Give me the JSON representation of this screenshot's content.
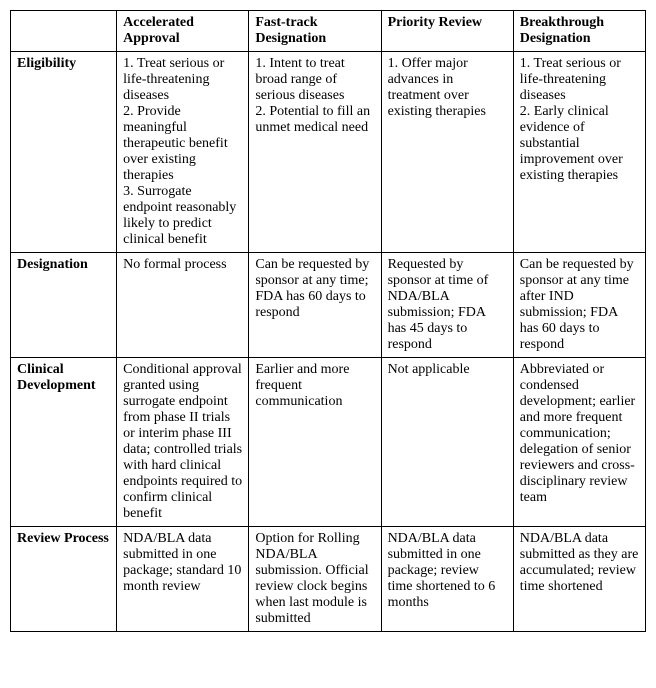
{
  "table": {
    "columns": [
      "Accelerated Approval",
      "Fast-track Designation",
      "Priority Review",
      "Breakthrough Designation"
    ],
    "row_headers": [
      "Eligibility",
      "Designation",
      "Clinical Development",
      "Review Process"
    ],
    "cells": {
      "eligibility": {
        "accelerated": "1. Treat serious or life-threatening diseases\n2. Provide meaningful therapeutic benefit over existing therapies\n3. Surrogate endpoint reasonably likely to predict clinical benefit",
        "fasttrack": "1. Intent to treat broad range of serious diseases\n2. Potential to fill an unmet medical need",
        "priority": "1. Offer major advances in treatment over existing therapies",
        "breakthrough": "1. Treat serious or life-threatening diseases\n2.  Early clinical evidence of substantial improvement over existing therapies"
      },
      "designation": {
        "accelerated": "No formal process",
        "fasttrack": "Can be requested by sponsor at any time; FDA has 60 days to respond",
        "priority": "Requested by sponsor at time of NDA/BLA submission; FDA has 45 days to respond",
        "breakthrough": "Can be requested by sponsor at any time after IND submission; FDA has 60 days to respond"
      },
      "clinical": {
        "accelerated": "Conditional approval granted using surrogate endpoint from phase II trials or interim phase III data; controlled trials with hard clinical endpoints required to confirm clinical benefit",
        "fasttrack": "Earlier and more frequent communication",
        "priority": "Not applicable",
        "breakthrough": "Abbreviated or condensed development; earlier and more frequent communication; delegation of senior reviewers and cross-disciplinary review team"
      },
      "review": {
        "accelerated": "NDA/BLA data submitted in one package; standard 10 month review",
        "fasttrack": "Option for Rolling NDA/BLA submission. Official review clock begins when last module is submitted",
        "priority": "NDA/BLA data submitted in one package; review time shortened to 6 months",
        "breakthrough": "NDA/BLA data submitted as they are accumulated; review time shortened"
      }
    }
  }
}
